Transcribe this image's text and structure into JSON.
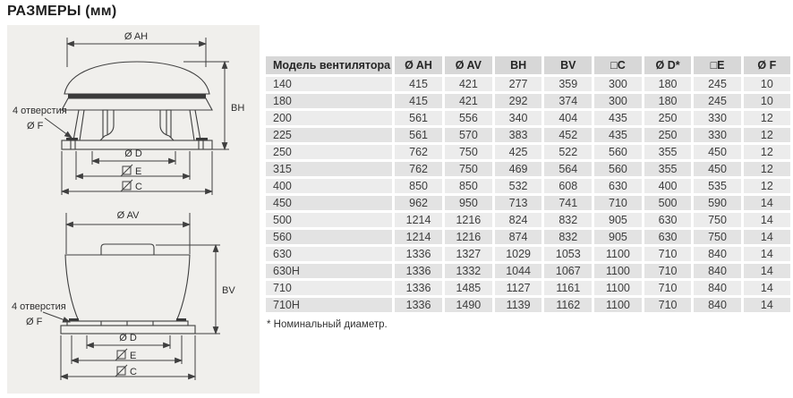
{
  "page": {
    "title": "РАЗМЕРЫ (мм)"
  },
  "drawings": {
    "top_view": {
      "dia_ah": "Ø AH",
      "bh": "BH",
      "holes_line1": "4 отверстия",
      "holes_line2": "Ø F",
      "dia_d": "Ø D",
      "e": "E",
      "c": "C"
    },
    "bottom_view": {
      "dia_av": "Ø AV",
      "bv": "BV",
      "holes_line1": "4 отверстия",
      "holes_line2": "Ø F",
      "dia_d": "Ø D",
      "e": "E",
      "c": "C"
    }
  },
  "table": {
    "headers": [
      "Модель вентилятора",
      "Ø AH",
      "Ø AV",
      "BH",
      "BV",
      "□C",
      "Ø D*",
      "□E",
      "Ø F"
    ],
    "rows": [
      [
        "140",
        "415",
        "421",
        "277",
        "359",
        "300",
        "180",
        "245",
        "10"
      ],
      [
        "180",
        "415",
        "421",
        "292",
        "374",
        "300",
        "180",
        "245",
        "10"
      ],
      [
        "200",
        "561",
        "556",
        "340",
        "404",
        "435",
        "250",
        "330",
        "12"
      ],
      [
        "225",
        "561",
        "570",
        "383",
        "452",
        "435",
        "250",
        "330",
        "12"
      ],
      [
        "250",
        "762",
        "750",
        "425",
        "522",
        "560",
        "355",
        "450",
        "12"
      ],
      [
        "315",
        "762",
        "750",
        "469",
        "564",
        "560",
        "355",
        "450",
        "12"
      ],
      [
        "400",
        "850",
        "850",
        "532",
        "608",
        "630",
        "400",
        "535",
        "12"
      ],
      [
        "450",
        "962",
        "950",
        "713",
        "741",
        "710",
        "500",
        "590",
        "14"
      ],
      [
        "500",
        "1214",
        "1216",
        "824",
        "832",
        "905",
        "630",
        "750",
        "14"
      ],
      [
        "560",
        "1214",
        "1216",
        "874",
        "832",
        "905",
        "630",
        "750",
        "14"
      ],
      [
        "630",
        "1336",
        "1327",
        "1029",
        "1053",
        "1100",
        "710",
        "840",
        "14"
      ],
      [
        "630H",
        "1336",
        "1332",
        "1044",
        "1067",
        "1100",
        "710",
        "840",
        "14"
      ],
      [
        "710",
        "1336",
        "1485",
        "1127",
        "1161",
        "1100",
        "710",
        "840",
        "14"
      ],
      [
        "710H",
        "1336",
        "1490",
        "1139",
        "1162",
        "1100",
        "710",
        "840",
        "14"
      ]
    ],
    "footnote": "* Номинальный диаметр."
  },
  "colors": {
    "panel_bg": "#f0efec",
    "table_header_bg": "#d7d7d7",
    "table_row_bg": "#e9e9e9",
    "line": "#3f3f3f",
    "text": "#2e2e2e"
  }
}
